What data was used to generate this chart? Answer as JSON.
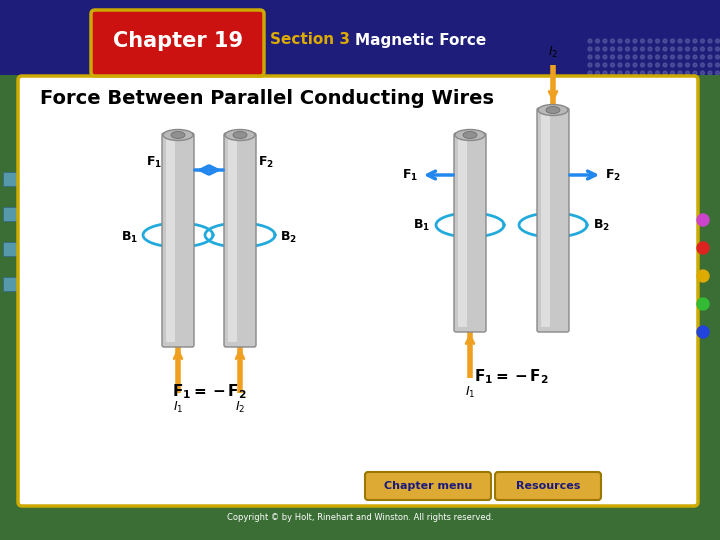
{
  "title_chapter": "Chapter 19",
  "title_section_colored": "Section 3 ",
  "title_section_plain": "Magnetic Force",
  "slide_title": "Force Between Parallel Conducting Wires",
  "bg_outer_color": "#3a6e35",
  "bg_header_color": "#1e1e7a",
  "chapter_box_color": "#cc1111",
  "chapter_box_border": "#ccaa00",
  "content_bg": "#ffffff",
  "content_border": "#ccaa00",
  "wire_body": "#c8c8c8",
  "wire_edge": "#888888",
  "wire_highlight": "#e8e8e8",
  "wire_top_fill": "#aaaaaa",
  "arrow_current": "#f0a020",
  "arrow_force": "#2288ee",
  "circle_color": "#22aadd",
  "footer_btn_color": "#ddaa33",
  "footer_btn_text": "#1a1a7e",
  "copyright_text": "Copyright © by Holt, Rinehart and Winston. All rights reserved.",
  "section_color1": "#ddaa00",
  "section_color2": "#ffffff",
  "dot_colors": [
    "#cc44cc",
    "#dd2222",
    "#ddaa00",
    "#33bb33",
    "#2244dd"
  ],
  "dot_pattern_color": "#6666aa"
}
